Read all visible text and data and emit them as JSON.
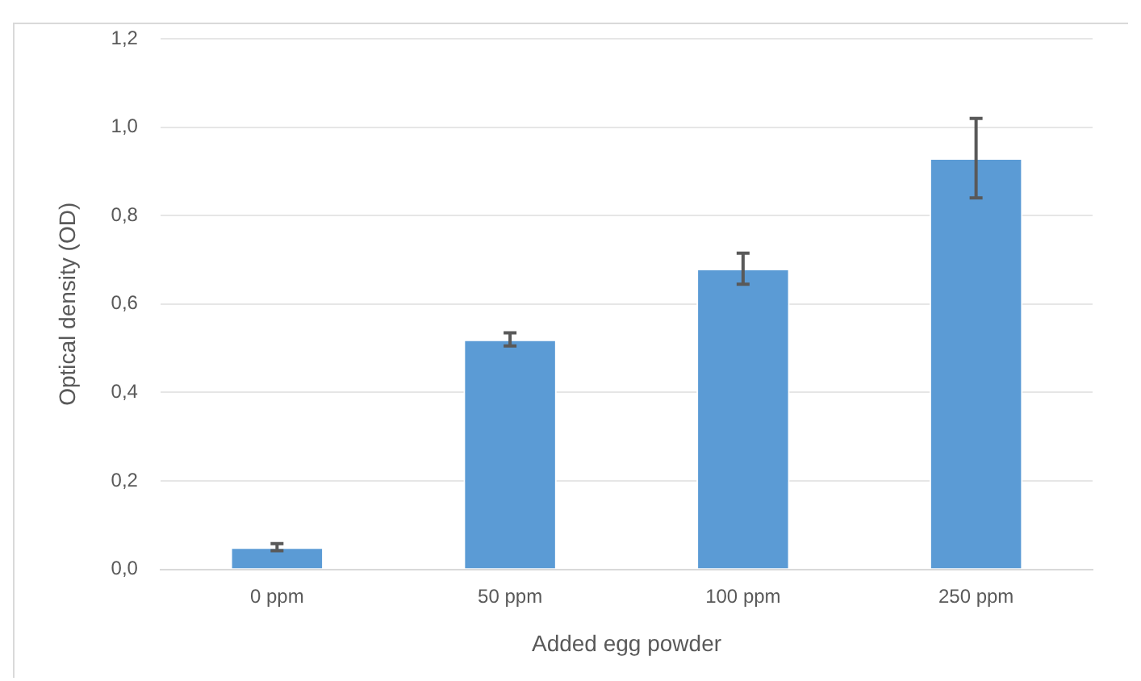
{
  "chart_data": {
    "type": "bar",
    "xlabel": "Added egg powder",
    "ylabel": "Optical density (OD)",
    "categories": [
      "0 ppm",
      "50 ppm",
      "100 ppm",
      "250 ppm"
    ],
    "values": [
      0.05,
      0.52,
      0.68,
      0.93
    ],
    "errors": [
      0.008,
      0.015,
      0.035,
      0.09
    ],
    "color": "#5b9bd5",
    "ylim": [
      0,
      1.2
    ],
    "yticks": [
      {
        "value": 0,
        "label": "0,0"
      },
      {
        "value": 0.2,
        "label": "0,2"
      },
      {
        "value": 0.4,
        "label": "0,4"
      },
      {
        "value": 0.6,
        "label": "0,6"
      },
      {
        "value": 0.8,
        "label": "0,8"
      },
      {
        "value": 1.0,
        "label": "1,0"
      },
      {
        "value": 1.2,
        "label": "1,2"
      }
    ],
    "grid": "y",
    "legend": false
  }
}
